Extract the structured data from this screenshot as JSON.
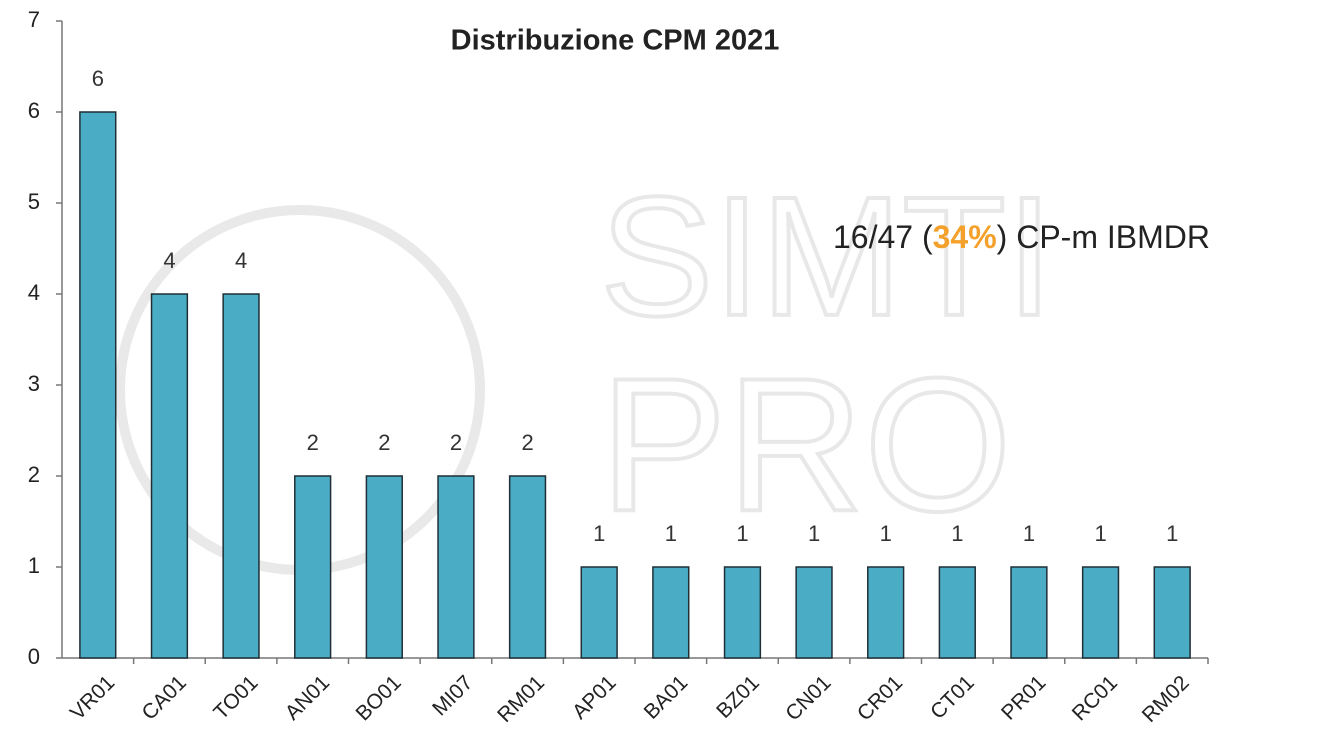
{
  "chart_data": {
    "type": "bar",
    "title": "Distribuzione CPM 2021",
    "categories": [
      "VR01",
      "CA01",
      "TO01",
      "AN01",
      "BO01",
      "MI07",
      "RM01",
      "AP01",
      "BA01",
      "BZ01",
      "CN01",
      "CR01",
      "CT01",
      "PR01",
      "RC01",
      "RM02"
    ],
    "values": [
      6,
      4,
      4,
      2,
      2,
      2,
      2,
      1,
      1,
      1,
      1,
      1,
      1,
      1,
      1,
      1
    ],
    "color": "#4bacc6",
    "ylim": [
      0,
      7
    ],
    "yticks": [
      0,
      1,
      2,
      3,
      4,
      5,
      6,
      7
    ],
    "grid": false,
    "annotation": {
      "before": "16/47 (",
      "highlight": "34%",
      "after": ") CP-m IBMDR",
      "highlight_color": "#f4a12c"
    },
    "watermark": [
      "SIMTI",
      "PRO"
    ]
  }
}
